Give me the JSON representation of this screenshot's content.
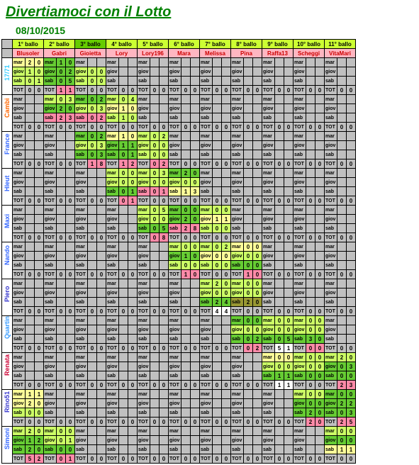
{
  "title": "Divertiamoci con il Lotto",
  "date": "08/10/2015",
  "balls": [
    "1° ballo",
    "2° ballo",
    "3° ballo",
    "4° ballo",
    "5° ballo",
    "6° ballo",
    "7° ballo",
    "8° ballo",
    "9° ballo",
    "10° ballo",
    "11° ballo"
  ],
  "players": [
    "Blusoler",
    "Gabri",
    "Gioietta",
    "Lory",
    "Lory196",
    "Mara",
    "Mara",
    "Melissa",
    "Pina",
    "Raffa13",
    "Scheggi",
    "VitaMari"
  ],
  "sideLabels": [
    "17/71",
    "Cambi",
    "France",
    "Hleut",
    "Maxi",
    "Nando",
    "Piero",
    "Quartin",
    "Renata",
    "Rino51",
    "Simoni"
  ],
  "sideColors": [
    "#33ccff",
    "#ff6600",
    "#3366ff",
    "#3366ff",
    "#3366ff",
    "#3366ff",
    "#3333cc",
    "#3399ff",
    "#cc0033",
    "#3333cc",
    "#3366ff"
  ],
  "rowLabels": [
    "mar",
    "giov",
    "sab",
    "TOT"
  ],
  "blocks": [
    {
      "rows": [
        [
          "Y20",
          "D10",
          "",
          "",
          "",
          "",
          "",
          "",
          "",
          ""
        ],
        [
          "L10",
          "D02",
          "L00",
          "",
          "",
          "",
          "",
          "",
          "",
          ""
        ],
        [
          "L01",
          "D05",
          "L00",
          "",
          "",
          "",
          "",
          "",
          "",
          ""
        ],
        [
          "T11",
          "P11",
          "T23",
          "T00",
          "T00",
          "T00",
          "T00",
          "T00",
          "T00",
          "T00"
        ]
      ]
    },
    {
      "rows": [
        [
          "",
          "L03",
          "D02",
          "L04",
          "",
          "",
          "",
          "",
          "",
          ""
        ],
        [
          "",
          "D20",
          "L03",
          "Y10",
          "",
          "",
          "",
          "",
          "",
          ""
        ],
        [
          "",
          "P23",
          "P02",
          "L10",
          "",
          "",
          "",
          "",
          "",
          ""
        ],
        [
          "T00",
          "T00",
          "T00",
          "T00",
          "T00",
          "T00",
          "T00",
          "T00",
          "T00",
          "T00"
        ]
      ]
    },
    {
      "rows": [
        [
          "",
          "",
          "D02",
          "Y10",
          "L02",
          "",
          "",
          "",
          "",
          ""
        ],
        [
          "",
          "",
          "L03",
          "D11",
          "L00",
          "",
          "",
          "",
          "",
          ""
        ],
        [
          "",
          "",
          "D03",
          "D01",
          "L00",
          "",
          "",
          "",
          "",
          ""
        ],
        [
          "T00",
          "T00",
          "P18",
          "P12",
          "P02",
          "T00",
          "T00",
          "T00",
          "T00",
          "T00"
        ]
      ]
    },
    {
      "rows": [
        [
          "",
          "",
          "",
          "L00",
          "L03",
          "D20",
          "",
          "",
          "",
          ""
        ],
        [
          "",
          "",
          "",
          "L00",
          "L00",
          "L00",
          "",
          "",
          "",
          ""
        ],
        [
          "",
          "",
          "",
          "D01",
          "P01",
          "Y13",
          "",
          "",
          "",
          ""
        ],
        [
          "T00",
          "T00",
          "T00",
          "P01",
          "T33",
          "T00",
          "T00",
          "T00",
          "T00",
          "T00"
        ]
      ]
    },
    {
      "rows": [
        [
          "",
          "",
          "",
          "",
          "L05",
          "D00",
          "L00",
          "",
          "",
          ""
        ],
        [
          "",
          "",
          "",
          "",
          "L00",
          "D20",
          "Y11",
          "",
          "",
          ""
        ],
        [
          "",
          "",
          "",
          "",
          "D05",
          "P28",
          "L00",
          "",
          "",
          ""
        ],
        [
          "T00",
          "T00",
          "T00",
          "T00",
          "P08",
          "T44",
          "T11",
          "T00",
          "T00",
          "T00"
        ]
      ]
    },
    {
      "rows": [
        [
          "",
          "",
          "",
          "",
          "",
          "L00",
          "L02",
          "Y00",
          "",
          ""
        ],
        [
          "",
          "",
          "",
          "",
          "",
          "D10",
          "Y00",
          "L00",
          "",
          ""
        ],
        [
          "",
          "",
          "",
          "",
          "",
          "L00",
          "L00",
          "D00",
          "",
          ""
        ],
        [
          "T00",
          "T00",
          "T00",
          "T00",
          "T00",
          "P10",
          "T22",
          "P10",
          "T00",
          "T00"
        ]
      ]
    },
    {
      "rows": [
        [
          "",
          "",
          "",
          "",
          "",
          "",
          "L20",
          "L00",
          "",
          ""
        ],
        [
          "",
          "",
          "",
          "",
          "",
          "",
          "L00",
          "L00",
          "",
          ""
        ],
        [
          "",
          "",
          "",
          "",
          "",
          "",
          "D24",
          "O20",
          "",
          ""
        ],
        [
          "T00",
          "T00",
          "T00",
          "T00",
          "T00",
          "T00",
          "W44",
          "T00",
          "T00",
          "T00"
        ]
      ]
    },
    {
      "rows": [
        [
          "",
          "",
          "",
          "",
          "",
          "",
          "",
          "D00",
          "L00",
          "L00"
        ],
        [
          "",
          "",
          "",
          "",
          "",
          "",
          "",
          "L00",
          "L00",
          "L00"
        ],
        [
          "",
          "",
          "",
          "",
          "",
          "",
          "",
          "D02",
          "D05",
          "D30"
        ],
        [
          "T00",
          "T00",
          "T00",
          "T00",
          "T00",
          "T00",
          "T00",
          "P02",
          "W51",
          "P00"
        ]
      ]
    },
    {
      "rows": [
        [
          "",
          "",
          "",
          "",
          "",
          "",
          "",
          "",
          "Y00",
          "L00",
          "L20"
        ],
        [
          "",
          "",
          "",
          "",
          "",
          "",
          "",
          "",
          "L00",
          "L00",
          "D03"
        ],
        [
          "",
          "",
          "",
          "",
          "",
          "",
          "",
          "",
          "D11",
          "D00",
          "D00"
        ],
        [
          "T00",
          "T00",
          "T00",
          "T00",
          "T00",
          "T00",
          "T00",
          "T00",
          "W11",
          "T00",
          "P23"
        ]
      ]
    },
    {
      "rows": [
        [
          "Y11",
          "",
          "",
          "",
          "",
          "",
          "",
          "",
          "",
          "L00",
          "D00"
        ],
        [
          "Y20",
          "",
          "",
          "",
          "",
          "",
          "",
          "",
          "",
          "D00",
          "D22"
        ],
        [
          "L00",
          "",
          "",
          "",
          "",
          "",
          "",
          "",
          "",
          "D20",
          "D03"
        ],
        [
          "T31",
          "T00",
          "T00",
          "T00",
          "T00",
          "T00",
          "T00",
          "T00",
          "T00",
          "P20",
          "P25"
        ]
      ]
    },
    {
      "rows": [
        [
          "L20",
          "L00",
          "",
          "",
          "",
          "",
          "",
          "",
          "",
          "",
          "L00"
        ],
        [
          "D12",
          "L01",
          "",
          "",
          "",
          "",
          "",
          "",
          "",
          "",
          "D00"
        ],
        [
          "D20",
          "D00",
          "",
          "",
          "",
          "",
          "",
          "",
          "",
          "",
          "Y11"
        ],
        [
          "P52",
          "P01",
          "T00",
          "T00",
          "T00",
          "T00",
          "T00",
          "T00",
          "T00",
          "T00",
          "T11"
        ]
      ]
    }
  ]
}
